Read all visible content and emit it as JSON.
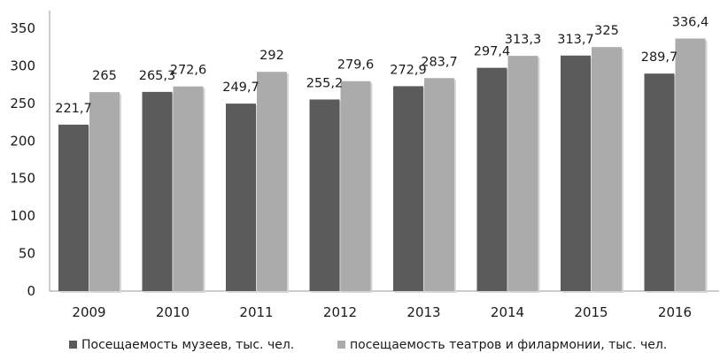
{
  "chart_data": {
    "type": "bar",
    "categories": [
      "2009",
      "2010",
      "2011",
      "2012",
      "2013",
      "2014",
      "2015",
      "2016"
    ],
    "series": [
      {
        "name": "Посещаемость музеев, тыс. чел.",
        "color": "#5b5b5b",
        "values": [
          221.7,
          265.3,
          249.7,
          255.2,
          272.9,
          297.4,
          313.7,
          289.7
        ],
        "labels": [
          "221,7",
          "265,3",
          "249,7",
          "255,2",
          "272,9",
          "297,4",
          "313,7",
          "289,7"
        ]
      },
      {
        "name": "посещаемость театров и филармонии, тыс. чел.",
        "color": "#ababab",
        "values": [
          265,
          272.6,
          292,
          279.6,
          283.7,
          313.3,
          325,
          336.4
        ],
        "labels": [
          "265",
          "272,6",
          "292",
          "279,6",
          "283,7",
          "313,3",
          "325",
          "336,4"
        ]
      }
    ],
    "ylim": [
      0,
      350
    ],
    "yticks": [
      0,
      50,
      100,
      150,
      200,
      250,
      300,
      350
    ],
    "grid": false,
    "legend": "bottom"
  }
}
